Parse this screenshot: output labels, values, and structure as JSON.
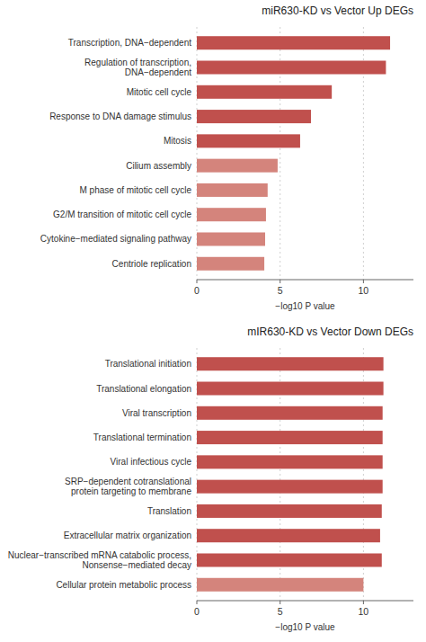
{
  "chart_data": [
    {
      "type": "bar",
      "orientation": "horizontal",
      "title": "miR630-KD vs Vector Up DEGs",
      "categories": [
        "Centriole replication",
        "Cytokine−mediated signaling pathway",
        "G2/M transition of mitotic cell cycle",
        "M phase of mitotic cell cycle",
        "Cilium assembly",
        "Mitosis",
        "Response to DNA damage stimulus",
        "Mitotic cell cycle",
        "Regulation of transcription,\nDNA−dependent",
        "Transcription, DNA−dependent"
      ],
      "values": [
        4.05,
        4.1,
        4.15,
        4.25,
        4.85,
        6.2,
        6.85,
        8.1,
        11.35,
        11.6
      ],
      "colors": [
        "#d4847c",
        "#d4847c",
        "#d4847c",
        "#d4847c",
        "#d4847c",
        "#c0504d",
        "#c0504d",
        "#c0504d",
        "#c0504d",
        "#c0504d"
      ],
      "xlabel": "−log10 P value",
      "xlim": [
        0,
        13
      ],
      "xticks": [
        0,
        5,
        10
      ],
      "grid": true
    },
    {
      "type": "bar",
      "orientation": "horizontal",
      "title": "mIR630-KD vs Vector Down DEGs",
      "categories": [
        "Cellular protein metabolic process",
        "Nuclear−transcribed mRNA catabolic process,\nNonsense−mediated decay",
        "Extracellular matrix organization",
        "Translation",
        "SRP−dependent cotranslational\nprotein targeting to membrane",
        "Viral infectious cycle",
        "Translational termination",
        "Viral transcription",
        "Translational elongation",
        "Translational initiation"
      ],
      "values": [
        10.0,
        11.1,
        11.0,
        11.1,
        11.15,
        11.15,
        11.15,
        11.15,
        11.2,
        11.2
      ],
      "colors": [
        "#d4847c",
        "#c0504d",
        "#c0504d",
        "#c0504d",
        "#c0504d",
        "#c0504d",
        "#c0504d",
        "#c0504d",
        "#c0504d",
        "#c0504d"
      ],
      "xlabel": "−log10 P value",
      "xlim": [
        0,
        13
      ],
      "xticks": [
        0,
        5,
        10
      ],
      "grid": true
    }
  ]
}
